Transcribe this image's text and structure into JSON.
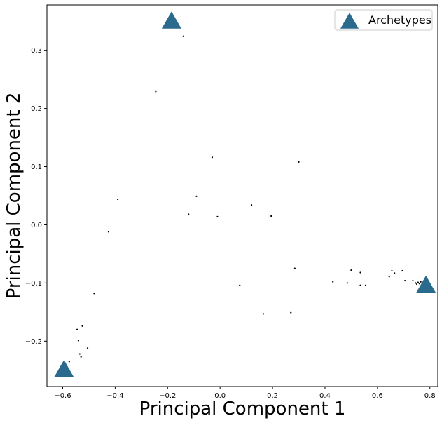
{
  "chart_data": {
    "type": "scatter",
    "title": "",
    "xlabel": "Principal Component 1",
    "ylabel": "Principal Component 2",
    "xlim": [
      -0.66,
      0.83
    ],
    "ylim": [
      -0.278,
      0.378
    ],
    "xticks": [
      -0.6,
      -0.4,
      -0.2,
      0.0,
      0.2,
      0.4,
      0.6,
      0.8
    ],
    "xtick_labels": [
      "−0.6",
      "−0.4",
      "−0.2",
      "0.0",
      "0.2",
      "0.4",
      "0.6",
      "0.8"
    ],
    "yticks": [
      -0.2,
      -0.1,
      0.0,
      0.1,
      0.2,
      0.3
    ],
    "ytick_labels": [
      "−0.2",
      "−0.1",
      "0.0",
      "0.1",
      "0.2",
      "0.3"
    ],
    "grid": false,
    "legend_position": "top-right",
    "legend_entries": [
      "Archetypes"
    ],
    "colors": {
      "archetype": "#2a6a8c",
      "point": "#000000"
    },
    "points": [
      {
        "x": -0.14,
        "y": 0.324
      },
      {
        "x": -0.245,
        "y": 0.229
      },
      {
        "x": -0.03,
        "y": 0.116
      },
      {
        "x": 0.3,
        "y": 0.108
      },
      {
        "x": -0.39,
        "y": 0.044
      },
      {
        "x": -0.09,
        "y": 0.049
      },
      {
        "x": -0.12,
        "y": 0.018
      },
      {
        "x": -0.01,
        "y": 0.014
      },
      {
        "x": 0.12,
        "y": 0.034
      },
      {
        "x": 0.195,
        "y": 0.015
      },
      {
        "x": -0.425,
        "y": -0.012
      },
      {
        "x": 0.285,
        "y": -0.075
      },
      {
        "x": 0.075,
        "y": -0.104
      },
      {
        "x": -0.48,
        "y": -0.118
      },
      {
        "x": 0.165,
        "y": -0.153
      },
      {
        "x": 0.27,
        "y": -0.151
      },
      {
        "x": 0.43,
        "y": -0.098
      },
      {
        "x": 0.485,
        "y": -0.1
      },
      {
        "x": 0.5,
        "y": -0.078
      },
      {
        "x": 0.535,
        "y": -0.082
      },
      {
        "x": 0.535,
        "y": -0.104
      },
      {
        "x": 0.555,
        "y": -0.104
      },
      {
        "x": 0.645,
        "y": -0.089
      },
      {
        "x": 0.655,
        "y": -0.079
      },
      {
        "x": 0.665,
        "y": -0.083
      },
      {
        "x": 0.695,
        "y": -0.079
      },
      {
        "x": 0.705,
        "y": -0.096
      },
      {
        "x": 0.735,
        "y": -0.096
      },
      {
        "x": 0.745,
        "y": -0.1
      },
      {
        "x": 0.75,
        "y": -0.102
      },
      {
        "x": 0.755,
        "y": -0.099
      },
      {
        "x": 0.76,
        "y": -0.101
      },
      {
        "x": 0.765,
        "y": -0.098
      },
      {
        "x": 0.77,
        "y": -0.102
      },
      {
        "x": -0.525,
        "y": -0.174
      },
      {
        "x": -0.545,
        "y": -0.18
      },
      {
        "x": -0.54,
        "y": -0.199
      },
      {
        "x": -0.505,
        "y": -0.212
      },
      {
        "x": -0.535,
        "y": -0.222
      },
      {
        "x": -0.53,
        "y": -0.227
      },
      {
        "x": -0.575,
        "y": -0.235
      }
    ],
    "archetypes": [
      {
        "x": -0.185,
        "y": 0.35
      },
      {
        "x": 0.785,
        "y": -0.104
      },
      {
        "x": -0.595,
        "y": -0.249
      }
    ]
  }
}
